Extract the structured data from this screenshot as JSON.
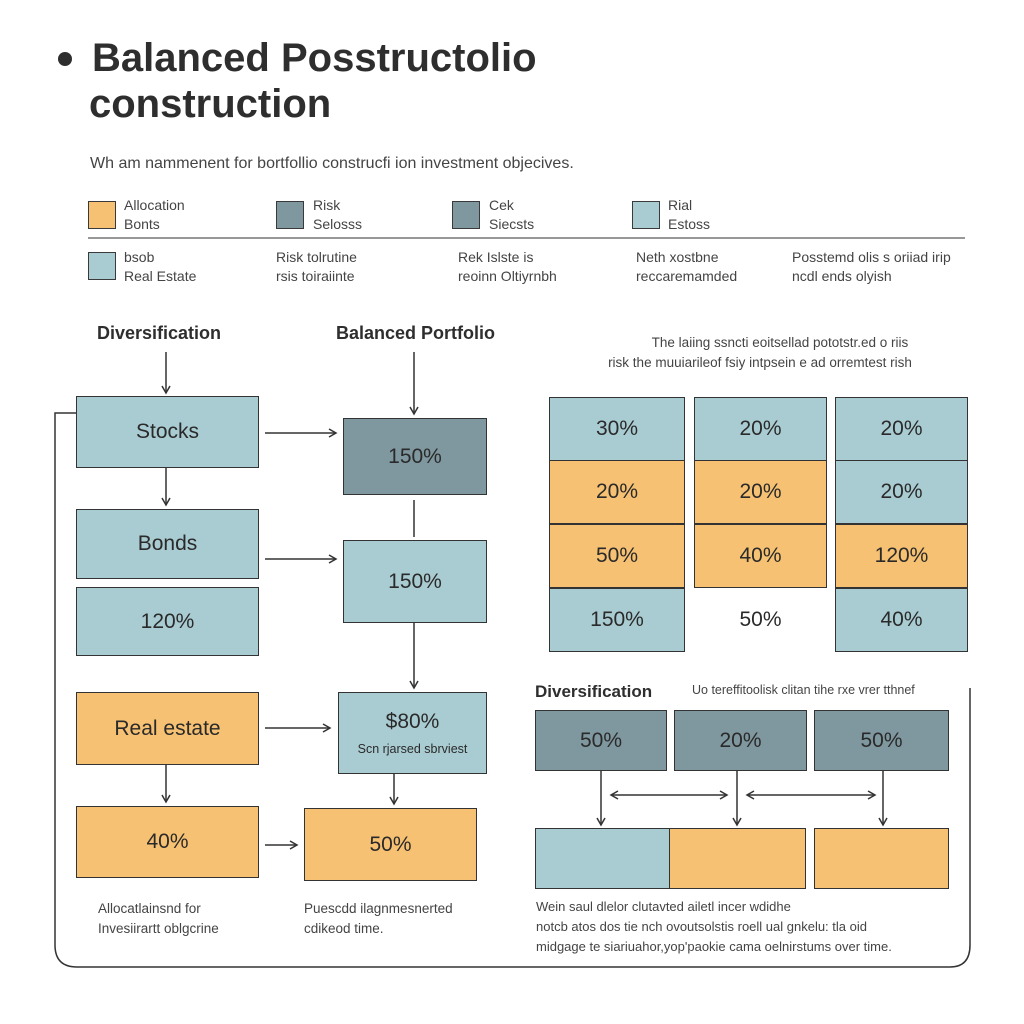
{
  "header": {
    "title_line1": "Balanced Posstructolio",
    "title_line2": "construction",
    "subtitle": "Wh am nammenent for bortfollio construcfi ion investment objecives."
  },
  "legend": {
    "row1": [
      {
        "line1": "Allocation",
        "line2": "Bonts",
        "color": "#f6c172"
      },
      {
        "line1": "Risk",
        "line2": "Selosss",
        "color": "#7f979f"
      },
      {
        "line1": "Cek",
        "line2": "Siecsts",
        "color": "#7f979f"
      },
      {
        "line1": "Rial",
        "line2": "Estoss",
        "color": "#a9ccd2"
      }
    ],
    "row2": [
      {
        "line1": "bsob",
        "line2": "Real Estate",
        "color": "#a9ccd2"
      },
      {
        "line1": "Risk tolrutine",
        "line2": "rsis toiraiinte"
      },
      {
        "line1": "Rek Islste is",
        "line2": "reoinn Oltiyrnbh"
      },
      {
        "line1": "Neth xostbne",
        "line2": "reccaremamded"
      },
      {
        "line1": "Posstemd olis s oriiad irip",
        "line2": "ncdl ends olyish"
      }
    ]
  },
  "flow": {
    "left_heading": "Diversification",
    "mid_heading": "Balanced Portfolio",
    "left_boxes": [
      "Stocks",
      "Bonds",
      "120%",
      "Real estate",
      "40%"
    ],
    "mid_boxes": [
      "150%",
      "150%",
      "$80%",
      "50%"
    ],
    "mid_box3_sub": "Scn rjarsed sbrviest",
    "left_note": [
      "Allocatlainsnd for",
      "Invesiirartt oblgcrine"
    ],
    "mid_note": [
      "Puescdd ilagnmesnerted",
      "cdikeod time."
    ]
  },
  "grid": {
    "caption": [
      "The laiing ssncti eoitsellad pototstr.ed o riis",
      "risk the muuiarileof fsiy intpsein e ad orremtest rish"
    ],
    "columns": [
      [
        {
          "v": "30%",
          "c": "blue"
        },
        {
          "v": "20%",
          "c": "orange"
        },
        {
          "v": "50%",
          "c": "orange"
        },
        {
          "v": "150%",
          "c": "blue"
        }
      ],
      [
        {
          "v": "20%",
          "c": "blue"
        },
        {
          "v": "20%",
          "c": "orange"
        },
        {
          "v": "40%",
          "c": "orange"
        },
        {
          "v": "50%",
          "c": "none"
        }
      ],
      [
        {
          "v": "20%",
          "c": "blue"
        },
        {
          "v": "20%",
          "c": "blue"
        },
        {
          "v": "120%",
          "c": "orange"
        },
        {
          "v": "40%",
          "c": "blue"
        }
      ]
    ]
  },
  "diversification": {
    "heading": "Diversification",
    "caption": "Uo tereffitoolisk clitan tihe rxe vrer tthnef",
    "top_boxes": [
      "50%",
      "20%",
      "50%"
    ],
    "note": [
      "Wein saul dlelor clutavted ailetl incer wdidhe",
      "notcb atos dos tie nch ovoutsolstis roell ual gnkelu: tla oid",
      "midgage te siariuahor,yop'paokie cama oelnirstums over time."
    ]
  },
  "colors": {
    "blue": "#a9ccd2",
    "orange": "#f6c172",
    "slate": "#7f979f"
  }
}
